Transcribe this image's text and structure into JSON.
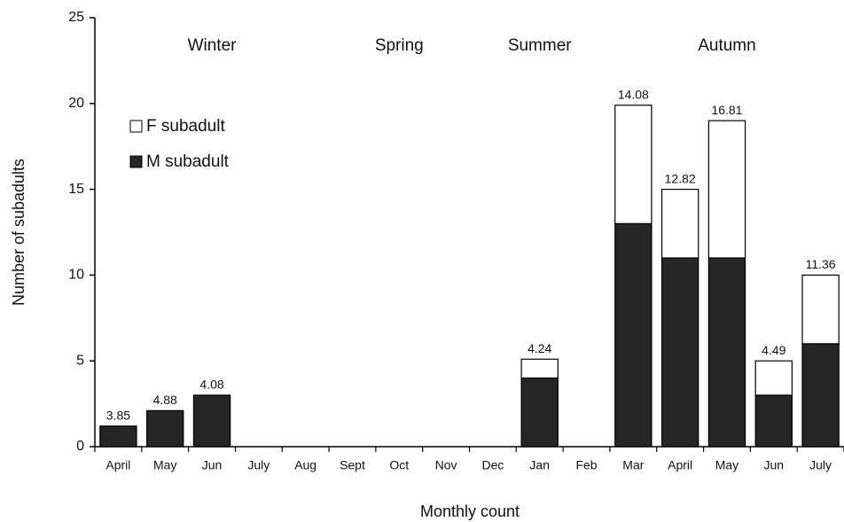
{
  "chart_data": {
    "type": "stacked_bar",
    "x_label": "Monthly count",
    "y_label": "Number of subadults",
    "categories": [
      "April",
      "May",
      "Jun",
      "July",
      "Aug",
      "Sept",
      "Oct",
      "Nov",
      "Dec",
      "Jan",
      "Feb",
      "Mar",
      "April",
      "May",
      "Jun",
      "July"
    ],
    "series": [
      {
        "name": "M subadult",
        "color": "#262626",
        "values": [
          1.2,
          2.1,
          3,
          0,
          0,
          0,
          0,
          0,
          0,
          4,
          0,
          13,
          11,
          11,
          3,
          6
        ]
      },
      {
        "name": "F subadult",
        "color": "#ffffff",
        "values": [
          0,
          0,
          0,
          0,
          0,
          0,
          0,
          0,
          0,
          1.1,
          0,
          6.9,
          4,
          8,
          2,
          4
        ]
      }
    ],
    "bar_annotations": [
      "3.85",
      "4.88",
      "4.08",
      null,
      null,
      null,
      null,
      null,
      null,
      "4.24",
      null,
      "14.08",
      "12.82",
      "16.81",
      "4.49",
      "11.36"
    ],
    "season_labels": [
      null,
      null,
      "Winter",
      null,
      null,
      null,
      "Spring",
      null,
      null,
      "Summer",
      null,
      null,
      null,
      "Autumn",
      null,
      null
    ],
    "ylim": [
      0,
      25
    ],
    "yticks": [
      0,
      5,
      10,
      15,
      20,
      25
    ],
    "legend": "upper left",
    "grid": false
  }
}
